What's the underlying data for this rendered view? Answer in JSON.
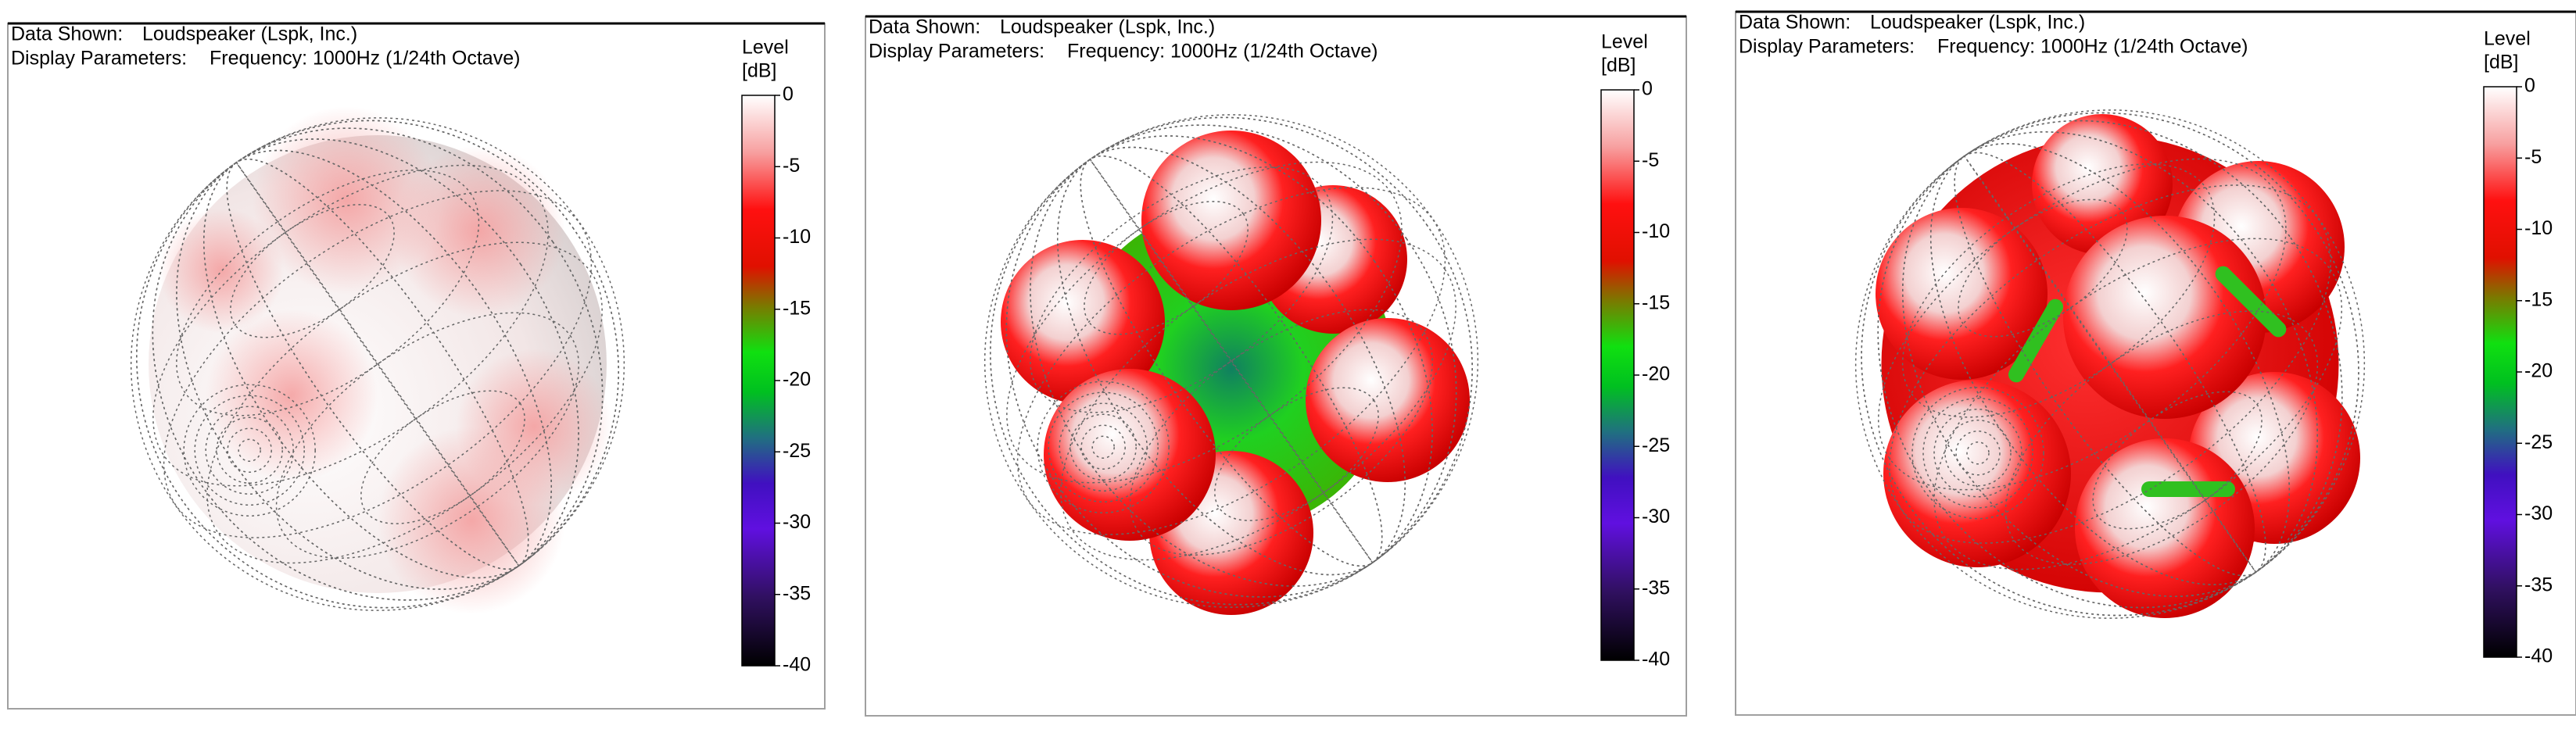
{
  "panels": [
    {
      "data_shown_label": "Data Shown:",
      "data_shown": "Loudspeaker (Lspk, Inc.)",
      "display_parameters_label": "Display Parameters:",
      "display_parameters": "Frequency: 1000Hz (1/24th Octave)",
      "colorbar": {
        "title": "Level",
        "unit": "[dB]",
        "ticks": [
          0,
          -5,
          -10,
          -15,
          -20,
          -25,
          -30,
          -35,
          -40
        ]
      }
    },
    {
      "data_shown_label": "Data Shown:",
      "data_shown": "Loudspeaker (Lspk, Inc.)",
      "display_parameters_label": "Display Parameters:",
      "display_parameters": "Frequency: 1000Hz (1/24th Octave)",
      "colorbar": {
        "title": "Level",
        "unit": "[dB]",
        "ticks": [
          0,
          -5,
          -10,
          -15,
          -20,
          -25,
          -30,
          -35,
          -40
        ]
      }
    },
    {
      "data_shown_label": "Data Shown:",
      "data_shown": "Loudspeaker (Lspk, Inc.)",
      "display_parameters_label": "Display Parameters:",
      "display_parameters": "Frequency: 1000Hz (1/24th Octave)",
      "colorbar": {
        "title": "Level",
        "unit": "[dB]",
        "ticks": [
          0,
          -5,
          -10,
          -15,
          -20,
          -25,
          -30,
          -35,
          -40
        ]
      }
    }
  ]
}
